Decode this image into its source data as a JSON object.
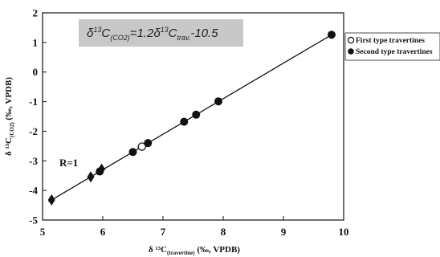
{
  "chart_data": {
    "type": "scatter",
    "xlabel": {
      "main": "δ ¹³C",
      "sub": "(travertine)",
      "unit": " (‰, VPDB)"
    },
    "ylabel": {
      "main": "δ ¹³C",
      "sub": "(CO2)",
      "unit": " (‰, VPDB)"
    },
    "xlim": [
      5,
      10
    ],
    "ylim": [
      -5,
      2
    ],
    "x_ticks": [
      "5",
      "6",
      "7",
      "8",
      "9",
      "10"
    ],
    "y_ticks": [
      "2",
      "1",
      "0",
      "-1",
      "-2",
      "-3",
      "-4",
      "-5"
    ],
    "equation": {
      "prefix": "δ",
      "sup1": "13",
      "c1": "C",
      "sub1": "(CO2)",
      "mid": "=1.2δ",
      "sup2": "13",
      "c2": "C",
      "sub2": "trav.",
      "suffix": "-10.5"
    },
    "annotation": "R=1",
    "legend": [
      "First type travertines",
      "Second type travertines"
    ],
    "series": [
      {
        "name": "First type travertines",
        "marker": "open-circle",
        "points": [
          [
            6.65,
            -2.52
          ]
        ]
      },
      {
        "name": "Second type travertines",
        "marker": "filled-circle",
        "points": [
          [
            5.95,
            -3.36
          ],
          [
            6.5,
            -2.7
          ],
          [
            6.75,
            -2.4
          ],
          [
            7.35,
            -1.68
          ],
          [
            7.55,
            -1.44
          ],
          [
            7.92,
            -0.99
          ],
          [
            9.8,
            1.26
          ]
        ]
      },
      {
        "name": "",
        "marker": "diamond",
        "points": [
          [
            5.15,
            -4.32
          ],
          [
            5.8,
            -3.54
          ],
          [
            5.98,
            -3.28
          ]
        ]
      }
    ],
    "fit_line": {
      "x": [
        5.1,
        9.8
      ],
      "y": [
        -4.38,
        1.26
      ]
    },
    "colors": {
      "marker": "#111111",
      "line": "#111111",
      "equation_box": "#c8c8c8"
    }
  }
}
